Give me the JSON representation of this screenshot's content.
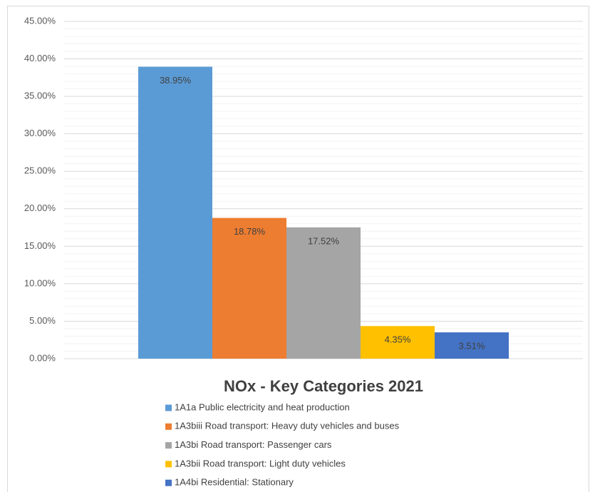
{
  "chart_data": {
    "type": "bar",
    "title": "NOx - Key Categories  2021",
    "series": [
      {
        "name": "1A1a Public electricity and heat production",
        "color": "#5b9bd5",
        "values": [
          38.95
        ],
        "value_labels": [
          "38.95%"
        ]
      },
      {
        "name": "1A3biii Road transport: Heavy duty vehicles and buses",
        "color": "#ed7d31",
        "values": [
          18.78
        ],
        "value_labels": [
          "18.78%"
        ]
      },
      {
        "name": "1A3bi Road transport: Passenger cars",
        "color": "#a5a5a5",
        "values": [
          17.52
        ],
        "value_labels": [
          "17.52%"
        ]
      },
      {
        "name": "1A3bii Road transport: Light duty vehicles",
        "color": "#ffc000",
        "values": [
          4.35
        ],
        "value_labels": [
          "4.35%"
        ]
      },
      {
        "name": "1A4bi Residential: Stationary",
        "color": "#4472c4",
        "values": [
          3.51
        ],
        "value_labels": [
          "3.51%"
        ]
      }
    ],
    "ylim": [
      0,
      45
    ],
    "yticks": [
      {
        "value": 0,
        "label": "0.00%"
      },
      {
        "value": 5,
        "label": "5.00%"
      },
      {
        "value": 10,
        "label": "10.00%"
      },
      {
        "value": 15,
        "label": "15.00%"
      },
      {
        "value": 20,
        "label": "20.00%"
      },
      {
        "value": 25,
        "label": "25.00%"
      },
      {
        "value": 30,
        "label": "30.00%"
      },
      {
        "value": 35,
        "label": "35.00%"
      },
      {
        "value": 40,
        "label": "40.00%"
      },
      {
        "value": 45,
        "label": "45.00%"
      }
    ],
    "grid": true,
    "legend": "bottom"
  }
}
